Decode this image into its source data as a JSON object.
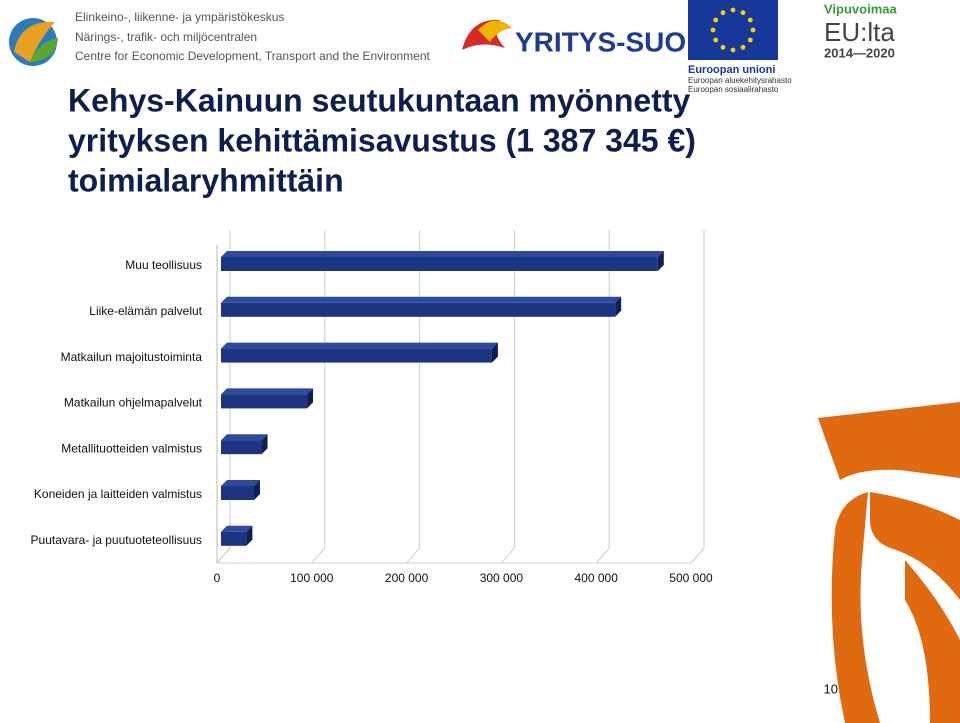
{
  "header": {
    "ely_lines": [
      "Elinkeino-, liikenne- ja ympäristökeskus",
      "Närings-, trafik- och miljöcentralen",
      "Centre for Economic Development, Transport and the Environment"
    ],
    "yritys_suomi": "YRITYS-SUOMI",
    "eu_lines": [
      "Euroopan unioni",
      "Euroopan aluekehitysrahasto",
      "Euroopan sosiaalirahasto"
    ],
    "vipuvoimaa": "Vipuvoimaa",
    "eu_lta": "EU:lta",
    "years": "2014—2020"
  },
  "page_number": "10",
  "chart_data": {
    "type": "bar",
    "orientation": "horizontal",
    "title": [
      "Kehys-Kainuun seutukuntaan myönnetty",
      "yrityksen kehittämisavustus (1 387 345 €)",
      "toimialaryhmittäin"
    ],
    "categories": [
      "Muu teollisuus",
      "Liike-elämän palvelut",
      "Matkailun majoitustoiminta",
      "Matkailun ohjelmapalvelut",
      "Metallituotteiden valmistus",
      "Koneiden ja laitteiden valmistus",
      "Puutavara- ja puutuoteteollisuus"
    ],
    "values": [
      465000,
      420000,
      290000,
      95000,
      47000,
      39000,
      31000
    ],
    "color": "#1c3580",
    "xlim": [
      0,
      500000
    ],
    "xticks": [
      0,
      {
        "value": 100000,
        "label": "100 000"
      },
      {
        "value": 200000,
        "label": "200 000"
      },
      {
        "value": 300000,
        "label": "300 000"
      },
      {
        "value": 400000,
        "label": "400 000"
      },
      {
        "value": 500000,
        "label": "500 000"
      }
    ],
    "grid": true
  }
}
